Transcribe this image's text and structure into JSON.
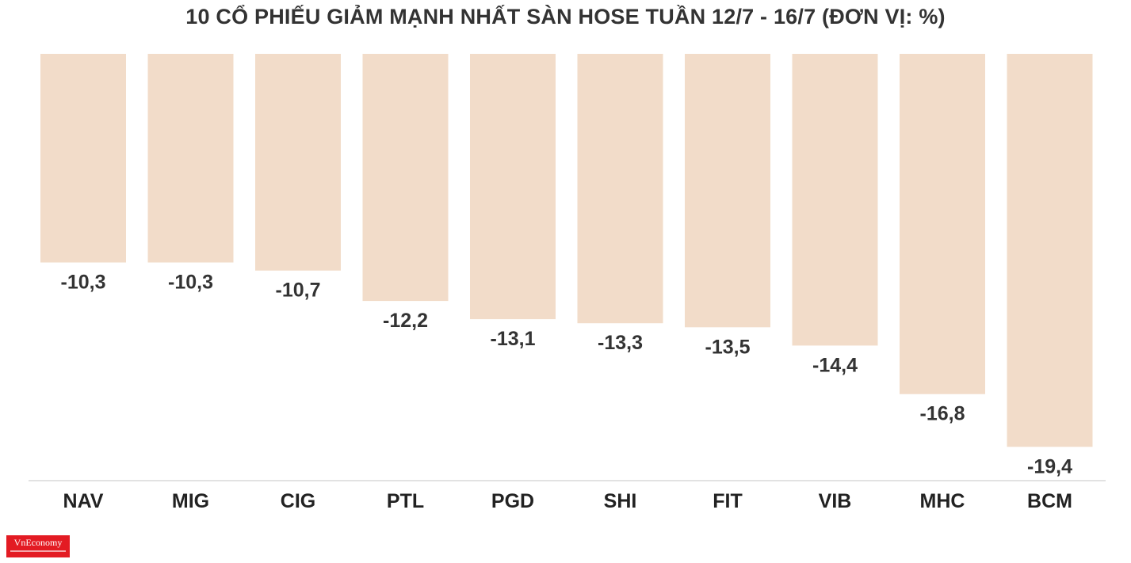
{
  "chart_data": {
    "type": "bar",
    "title": "10 CỔ PHIẾU GIẢM MẠNH NHẤT SÀN HOSE TUẦN 12/7 - 16/7 (ĐƠN VỊ: %)",
    "xlabel": "",
    "ylabel": "",
    "categories": [
      "NAV",
      "MIG",
      "CIG",
      "PTL",
      "PGD",
      "SHI",
      "FIT",
      "VIB",
      "MHC",
      "BCM"
    ],
    "values": [
      -10.3,
      -10.3,
      -10.7,
      -12.2,
      -13.1,
      -13.3,
      -13.5,
      -14.4,
      -16.8,
      -19.4
    ],
    "value_labels": [
      "-10,3",
      "-10,3",
      "-10,7",
      "-12,2",
      "-13,1",
      "-13,3",
      "-13,5",
      "-14,4",
      "-16,8",
      "-19,4"
    ],
    "bar_color": "#f2dcc9",
    "grid": false,
    "legend": "none"
  },
  "logo": {
    "text": "VnEconomy",
    "brand_color": "#e31b23"
  }
}
